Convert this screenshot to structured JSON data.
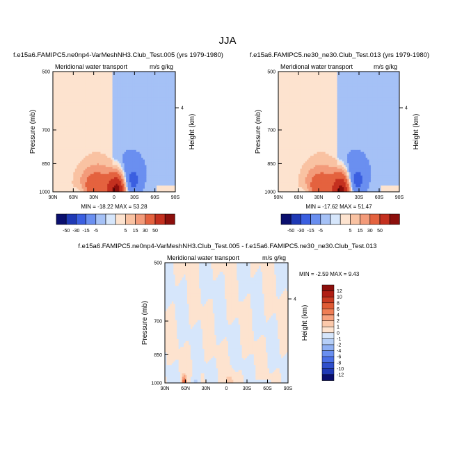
{
  "page_title": "JJA",
  "chart_data": [
    {
      "type": "heatmap",
      "title": "f.e15a6.FAMIPC5.ne0np4-VarMeshNH3.Club_Test.005 (yrs 1979-1980)",
      "left_label": "Meridional water transport",
      "right_label": "m/s g/kg",
      "xlabel": "",
      "ylabel": "Pressure (mb)",
      "y2label": "Height (km)",
      "x_ticks": [
        "90N",
        "60N",
        "30N",
        "0",
        "30S",
        "60S",
        "90S"
      ],
      "y_ticks": [
        "500",
        "700",
        "850",
        "1000"
      ],
      "y2_ticks": [
        "4"
      ],
      "xlim": [
        90,
        -90
      ],
      "ylim": [
        1000,
        500
      ],
      "stats": "MIN = -18.22   MAX = 53.28",
      "min": -18.22,
      "max": 53.28,
      "field": "raw1"
    },
    {
      "type": "heatmap",
      "title": "f.e15a6.FAMIPC5.ne30_ne30.Club_Test.013 (yrs 1979-1980)",
      "left_label": "Meridional water transport",
      "right_label": "m/s g/kg",
      "xlabel": "",
      "ylabel": "Pressure (mb)",
      "y2label": "Height (km)",
      "x_ticks": [
        "90N",
        "60N",
        "30N",
        "0",
        "30S",
        "60S",
        "90S"
      ],
      "y_ticks": [
        "500",
        "700",
        "850",
        "1000"
      ],
      "y2_ticks": [
        "4"
      ],
      "xlim": [
        90,
        -90
      ],
      "ylim": [
        1000,
        500
      ],
      "stats": "MIN = -17.62   MAX = 51.47",
      "min": -17.62,
      "max": 51.47,
      "field": "raw2"
    },
    {
      "type": "heatmap",
      "title": "f.e15a6.FAMIPC5.ne0np4-VarMeshNH3.Club_Test.005 - f.e15a6.FAMIPC5.ne30_ne30.Club_Test.013",
      "left_label": "Meridional water transport",
      "right_label": "m/s g/kg",
      "xlabel": "",
      "ylabel": "Pressure (mb)",
      "y2label": "Height (km)",
      "x_ticks": [
        "90N",
        "60N",
        "30N",
        "0",
        "30S",
        "60S",
        "90S"
      ],
      "y_ticks": [
        "500",
        "700",
        "850",
        "1000"
      ],
      "y2_ticks": [
        "4"
      ],
      "xlim": [
        90,
        -90
      ],
      "ylim": [
        1000,
        500
      ],
      "stats": "MIN = -2.59   MAX =  9.43",
      "min": -2.59,
      "max": 9.43,
      "field": "diff"
    }
  ],
  "colorbar_raw": {
    "orientation": "horizontal",
    "labels": [
      "-50",
      "-30",
      "-15",
      "-5",
      "5",
      "15",
      "30",
      "50"
    ],
    "colors": [
      "#0a0f6e",
      "#1f39b5",
      "#3b5fe0",
      "#6a8ff0",
      "#a5c1f6",
      "#d6e6fb",
      "#fde3cf",
      "#f9c2a2",
      "#f39b7a",
      "#e4623f",
      "#c4301f",
      "#8c0f0c"
    ]
  },
  "colorbar_diff": {
    "orientation": "vertical",
    "labels": [
      "12",
      "10",
      "8",
      "6",
      "4",
      "2",
      "1",
      "0",
      "-1",
      "-2",
      "-4",
      "-6",
      "-8",
      "-10",
      "-12"
    ],
    "colors": [
      "#8c0f0c",
      "#b01e14",
      "#c93a22",
      "#df5b35",
      "#ef7e55",
      "#f7a27f",
      "#fbc9ab",
      "#fde3cf",
      "#d6e6fb",
      "#b6cff8",
      "#8fb0f3",
      "#6a8ff0",
      "#4a6fe6",
      "#2f4fcc",
      "#1f39b5",
      "#0a0f6e"
    ]
  }
}
